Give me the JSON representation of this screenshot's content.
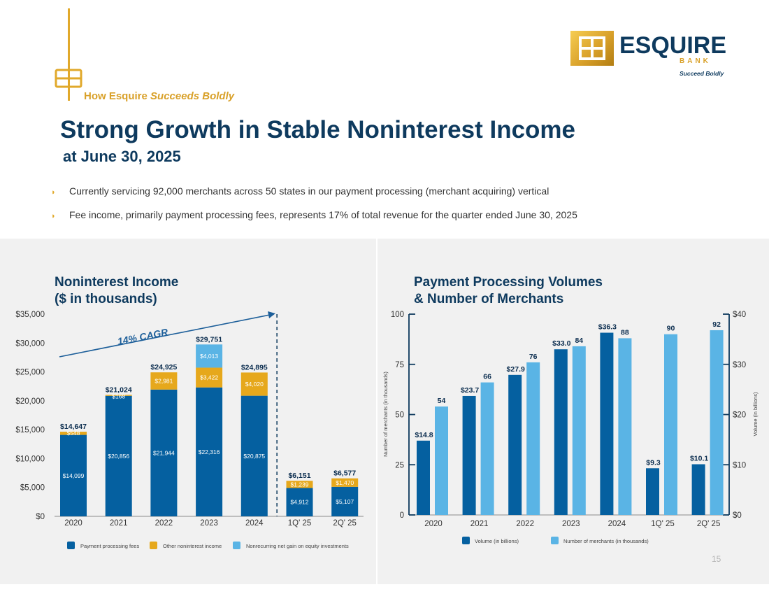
{
  "header": {
    "tagline_lead": "How Esquire ",
    "tagline_accent": "Succeeds Boldly",
    "logo_word": "ESQUIRE",
    "logo_bank": "BANK",
    "logo_sub": "Succeed Boldly",
    "title": "Strong Growth in Stable Noninterest Income",
    "subtitle": "at June 30, 2025"
  },
  "bullets": [
    "Currently servicing 92,000 merchants across 50 states in our payment processing (merchant acquiring) vertical",
    "Fee income, primarily payment processing fees, represents 17% of total revenue for the quarter ended June 30, 2025"
  ],
  "page_number": "15",
  "colors": {
    "navy": "#0560a0",
    "gold": "#e6a81c",
    "light_blue": "#5ab4e5",
    "title": "#0e3a5e",
    "gold_accent": "#e1a92b"
  },
  "chart_data": [
    {
      "type": "bar",
      "stacked": true,
      "title_line1": "Noninterest Income",
      "title_line2": "($ in thousands)",
      "categories": [
        "2020",
        "2021",
        "2022",
        "2023",
        "2024",
        "1Q' 25",
        "2Q' 25"
      ],
      "ylim": [
        0,
        35000
      ],
      "yticks": [
        0,
        5000,
        10000,
        15000,
        20000,
        25000,
        30000,
        35000
      ],
      "ytick_labels": [
        "$0",
        "$5,000",
        "$10,000",
        "$15,000",
        "$20,000",
        "$25,000",
        "$30,000",
        "$35,000"
      ],
      "series": [
        {
          "name": "Payment processing fees",
          "values": [
            14099,
            20856,
            21944,
            22316,
            20875,
            4912,
            5107
          ],
          "labels": [
            "$14,099",
            "$20,856",
            "$21,944",
            "$22,316",
            "$20,875",
            "$4,912",
            "$5,107"
          ]
        },
        {
          "name": "Other noninterest income",
          "values": [
            548,
            168,
            2981,
            3422,
            4020,
            1239,
            1470
          ],
          "labels": [
            "$548",
            "$168",
            "$2,981",
            "$3,422",
            "$4,020",
            "$1,239",
            "$1,470"
          ]
        },
        {
          "name": "Nonrecurring net gain on equity investments",
          "values": [
            0,
            0,
            0,
            4013,
            0,
            0,
            0
          ],
          "labels": [
            "",
            "",
            "",
            "$4,013",
            "",
            "",
            ""
          ]
        }
      ],
      "totals": [
        "$14,647",
        "$21,024",
        "$24,925",
        "$29,751",
        "$24,895",
        "$6,151",
        "$6,577"
      ],
      "annotation": "14% CAGR",
      "grid": false,
      "legend": "bottom"
    },
    {
      "type": "bar",
      "title_line1": "Payment Processing Volumes",
      "title_line2": "& Number of Merchants",
      "categories": [
        "2020",
        "2021",
        "2022",
        "2023",
        "2024",
        "1Q' 25",
        "2Q' 25"
      ],
      "ylabel_left": "Number of merchants (in thousands)",
      "ylabel_right": "Volume (in billions)",
      "ylim_left": [
        0,
        100
      ],
      "yticks_left": [
        "0",
        "25",
        "50",
        "75",
        "100"
      ],
      "ylim_right": [
        0,
        40
      ],
      "yticks_right": [
        "$0",
        "$10",
        "$20",
        "$30",
        "$40"
      ],
      "series": [
        {
          "name": "Volume (in billions)",
          "axis": "right",
          "values": [
            14.8,
            23.7,
            27.9,
            33.0,
            36.3,
            9.3,
            10.1
          ],
          "labels": [
            "$14.8",
            "$23.7",
            "$27.9",
            "$33.0",
            "$36.3",
            "$9.3",
            "$10.1"
          ]
        },
        {
          "name": "Number of merchants (in thousands)",
          "axis": "left",
          "values": [
            54,
            66,
            76,
            84,
            88,
            90,
            92
          ],
          "labels": [
            "54",
            "66",
            "76",
            "84",
            "88",
            "90",
            "92"
          ]
        }
      ],
      "grid": false,
      "legend": "bottom"
    }
  ]
}
